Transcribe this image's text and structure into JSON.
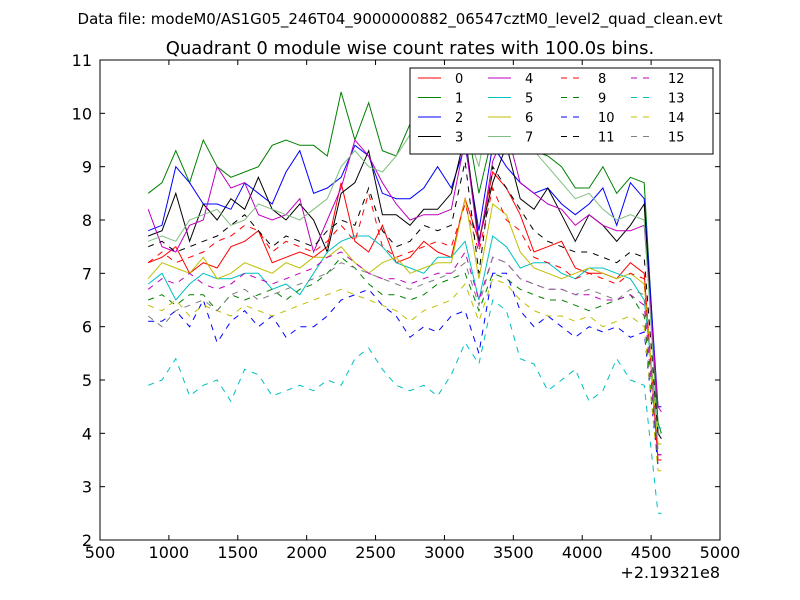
{
  "chart_data": {
    "type": "line",
    "suptitle": "Data file: modeM0/AS1G05_246T04_9000000882_06547cztM0_level2_quad_clean.evt",
    "title": "Quadrant 0 module wise count rates with 100.0s bins.",
    "xlabel": "",
    "ylabel": "",
    "x_offset_label": "+2.19321e8",
    "xlim": [
      500,
      5000
    ],
    "ylim": [
      2,
      11
    ],
    "x_ticks": [
      "500",
      "1000",
      "1500",
      "2000",
      "2500",
      "3000",
      "3500",
      "4000",
      "4500",
      "5000"
    ],
    "y_ticks": [
      "2",
      "3",
      "4",
      "5",
      "6",
      "7",
      "8",
      "9",
      "10",
      "11"
    ],
    "grid": false,
    "legend_position": "top-right",
    "x": [
      850,
      950,
      1050,
      1150,
      1250,
      1350,
      1450,
      1550,
      1650,
      1750,
      1850,
      1950,
      2050,
      2150,
      2250,
      2350,
      2450,
      2550,
      2650,
      2750,
      2850,
      2950,
      3050,
      3150,
      3250,
      3350,
      3450,
      3550,
      3650,
      3750,
      3850,
      3950,
      4050,
      4150,
      4250,
      4350,
      4450,
      4550,
      4575
    ],
    "series": [
      {
        "name": "0",
        "color": "#ff0000",
        "dash": "solid",
        "values": [
          7.2,
          7.3,
          7.5,
          7.0,
          7.2,
          7.1,
          7.5,
          7.6,
          7.8,
          7.2,
          7.3,
          7.4,
          7.3,
          7.5,
          8.7,
          7.6,
          7.4,
          7.9,
          7.2,
          7.3,
          7.6,
          7.4,
          7.3,
          8.4,
          7.6,
          8.9,
          8.6,
          8.1,
          7.4,
          7.5,
          7.6,
          7.1,
          7.0,
          7.0,
          6.9,
          7.2,
          7.0,
          3.5,
          3.5
        ]
      },
      {
        "name": "1",
        "color": "#008000",
        "dash": "solid",
        "values": [
          8.5,
          8.7,
          9.3,
          8.7,
          9.5,
          9.0,
          8.8,
          8.9,
          9.0,
          9.4,
          9.5,
          9.4,
          9.4,
          9.2,
          10.4,
          9.5,
          10.2,
          9.3,
          9.2,
          9.8,
          9.4,
          9.3,
          9.7,
          10.0,
          8.5,
          9.6,
          10.0,
          9.5,
          9.3,
          9.2,
          9.0,
          8.6,
          8.6,
          9.0,
          8.5,
          8.8,
          8.7,
          4.2,
          4.0
        ]
      },
      {
        "name": "2",
        "color": "#0000ff",
        "dash": "solid",
        "values": [
          7.8,
          7.9,
          9.0,
          8.7,
          8.3,
          8.3,
          8.2,
          8.7,
          8.5,
          8.3,
          8.9,
          9.3,
          8.5,
          8.6,
          8.8,
          9.4,
          9.2,
          8.5,
          8.4,
          8.4,
          8.6,
          9.0,
          8.6,
          9.4,
          7.8,
          9.4,
          9.0,
          8.7,
          8.5,
          8.6,
          8.3,
          8.1,
          8.3,
          8.6,
          7.9,
          8.7,
          8.4,
          4.5,
          4.5
        ]
      },
      {
        "name": "3",
        "color": "#000000",
        "dash": "solid",
        "values": [
          7.7,
          7.8,
          8.5,
          7.6,
          8.3,
          8.0,
          8.4,
          8.2,
          8.8,
          8.2,
          8.0,
          8.3,
          8.0,
          7.4,
          8.5,
          8.7,
          9.3,
          8.1,
          8.1,
          7.9,
          8.2,
          8.2,
          8.5,
          9.6,
          7.6,
          8.7,
          9.4,
          8.4,
          8.2,
          8.6,
          8.1,
          7.6,
          8.1,
          7.9,
          7.6,
          7.9,
          8.3,
          4.0,
          3.9
        ]
      },
      {
        "name": "4",
        "color": "#bf00bf",
        "dash": "solid",
        "values": [
          8.2,
          7.5,
          7.4,
          7.9,
          8.0,
          9.0,
          8.6,
          8.7,
          8.1,
          8.0,
          8.1,
          8.4,
          7.4,
          8.0,
          8.6,
          9.5,
          9.2,
          8.7,
          8.3,
          8.0,
          8.1,
          8.1,
          8.2,
          9.5,
          7.5,
          9.1,
          9.7,
          8.7,
          8.5,
          8.3,
          8.2,
          7.9,
          8.1,
          7.9,
          7.8,
          7.8,
          7.9,
          4.5,
          4.4
        ]
      },
      {
        "name": "5",
        "color": "#00bfbf",
        "dash": "solid",
        "values": [
          6.8,
          7.0,
          6.5,
          6.8,
          7.0,
          6.9,
          6.9,
          7.0,
          7.0,
          6.7,
          6.8,
          6.6,
          7.0,
          7.4,
          7.6,
          7.7,
          7.7,
          7.5,
          7.2,
          7.1,
          7.0,
          7.3,
          7.3,
          7.6,
          6.5,
          7.7,
          7.5,
          7.1,
          7.2,
          7.2,
          7.0,
          6.9,
          7.1,
          7.1,
          7.0,
          6.9,
          6.5,
          4.1,
          4.1
        ]
      },
      {
        "name": "6",
        "color": "#bfbf00",
        "dash": "solid",
        "values": [
          6.9,
          7.2,
          7.1,
          7.0,
          7.3,
          6.9,
          7.0,
          7.2,
          7.1,
          7.0,
          7.2,
          7.1,
          7.3,
          7.3,
          7.5,
          7.2,
          7.0,
          7.2,
          7.3,
          7.0,
          7.1,
          7.2,
          7.2,
          8.4,
          6.9,
          8.3,
          8.1,
          7.4,
          7.1,
          7.0,
          6.9,
          7.0,
          7.1,
          7.0,
          6.9,
          7.0,
          6.8,
          3.8,
          3.8
        ]
      },
      {
        "name": "7",
        "color": "#7fbf7f",
        "dash": "solid",
        "values": [
          7.6,
          7.7,
          7.6,
          8.0,
          8.1,
          8.2,
          7.9,
          8.0,
          8.3,
          8.2,
          8.1,
          8.0,
          8.2,
          8.4,
          9.0,
          9.3,
          9.0,
          8.9,
          9.2,
          9.6,
          9.4,
          9.3,
          9.6,
          9.8,
          9.0,
          10.5,
          10.6,
          9.5,
          9.3,
          9.0,
          8.7,
          8.4,
          8.5,
          8.2,
          8.0,
          8.1,
          8.0,
          4.0,
          4.0
        ]
      },
      {
        "name": "8",
        "color": "#ff0000",
        "dash": "dashed",
        "values": [
          7.2,
          7.4,
          7.2,
          7.3,
          7.4,
          7.6,
          7.7,
          7.9,
          7.8,
          7.4,
          7.6,
          7.5,
          7.4,
          7.6,
          7.9,
          7.6,
          8.5,
          7.5,
          7.3,
          7.4,
          7.5,
          7.6,
          7.5,
          8.3,
          7.4,
          8.6,
          8.0,
          7.8,
          7.3,
          7.2,
          7.1,
          6.9,
          7.0,
          6.9,
          6.8,
          7.0,
          6.9,
          3.6,
          3.6
        ]
      },
      {
        "name": "9",
        "color": "#008000",
        "dash": "dashed",
        "values": [
          6.5,
          6.6,
          6.4,
          6.6,
          6.6,
          6.3,
          6.6,
          6.5,
          6.6,
          6.7,
          6.5,
          6.7,
          6.8,
          7.0,
          7.3,
          7.1,
          6.8,
          6.6,
          6.6,
          6.5,
          6.6,
          6.8,
          6.9,
          7.0,
          6.3,
          7.0,
          6.9,
          6.7,
          6.6,
          6.5,
          6.5,
          6.4,
          6.3,
          6.4,
          6.5,
          6.6,
          6.2,
          3.4,
          3.4
        ]
      },
      {
        "name": "10",
        "color": "#0000ff",
        "dash": "dashed",
        "values": [
          6.1,
          6.1,
          6.3,
          6.0,
          6.5,
          5.7,
          6.1,
          6.3,
          6.0,
          6.2,
          5.8,
          6.0,
          6.0,
          6.2,
          6.5,
          6.6,
          6.7,
          6.4,
          6.2,
          5.8,
          6.0,
          5.9,
          6.2,
          6.3,
          5.5,
          7.0,
          7.0,
          6.3,
          6.0,
          6.2,
          6.0,
          5.8,
          6.0,
          5.9,
          6.0,
          5.8,
          5.9,
          3.4,
          3.4
        ]
      },
      {
        "name": "11",
        "color": "#000000",
        "dash": "dashed",
        "values": [
          7.5,
          7.6,
          7.4,
          7.5,
          7.6,
          7.7,
          7.9,
          8.1,
          7.8,
          7.5,
          7.7,
          7.6,
          7.5,
          7.8,
          8.0,
          7.9,
          8.6,
          7.8,
          7.5,
          7.6,
          7.9,
          7.8,
          7.9,
          9.1,
          7.0,
          9.0,
          8.6,
          8.2,
          7.8,
          7.6,
          7.5,
          7.4,
          7.4,
          7.3,
          7.2,
          7.4,
          7.3,
          4.0,
          4.0
        ]
      },
      {
        "name": "12",
        "color": "#bf00bf",
        "dash": "dashed",
        "values": [
          6.7,
          6.9,
          6.8,
          7.0,
          6.8,
          6.7,
          6.8,
          7.0,
          6.9,
          6.8,
          6.9,
          7.0,
          7.1,
          7.3,
          7.4,
          7.2,
          7.0,
          6.9,
          6.9,
          6.8,
          6.9,
          7.0,
          7.0,
          7.4,
          6.5,
          7.3,
          7.2,
          6.9,
          6.8,
          6.7,
          6.7,
          6.6,
          6.6,
          6.5,
          6.5,
          6.6,
          6.4,
          3.6,
          3.6
        ]
      },
      {
        "name": "13",
        "color": "#00bfbf",
        "dash": "dashed",
        "values": [
          4.9,
          5.0,
          5.4,
          4.7,
          4.9,
          5.0,
          4.6,
          5.2,
          5.1,
          4.7,
          4.8,
          4.9,
          4.8,
          5.0,
          4.9,
          5.4,
          5.6,
          5.2,
          4.9,
          4.8,
          4.9,
          4.7,
          5.1,
          5.7,
          5.3,
          6.5,
          6.3,
          5.4,
          5.3,
          4.8,
          5.0,
          5.2,
          4.6,
          4.8,
          5.4,
          5.0,
          4.9,
          2.5,
          2.5
        ]
      },
      {
        "name": "14",
        "color": "#bfbf00",
        "dash": "dashed",
        "values": [
          6.4,
          6.3,
          6.5,
          6.2,
          6.4,
          6.3,
          6.2,
          6.4,
          6.3,
          6.2,
          6.3,
          6.4,
          6.5,
          6.6,
          6.7,
          6.6,
          6.5,
          6.4,
          6.3,
          6.1,
          6.3,
          6.4,
          6.5,
          6.8,
          6.1,
          6.9,
          6.8,
          6.5,
          6.3,
          6.2,
          6.2,
          6.1,
          6.2,
          6.0,
          6.1,
          6.2,
          6.0,
          3.3,
          3.3
        ]
      },
      {
        "name": "15",
        "color": "#7f7f7f",
        "dash": "dashed",
        "values": [
          6.2,
          6.0,
          6.3,
          6.4,
          6.5,
          6.3,
          6.6,
          6.7,
          6.5,
          6.6,
          6.7,
          6.8,
          6.9,
          7.0,
          7.2,
          7.1,
          7.0,
          6.9,
          6.8,
          6.7,
          6.8,
          6.9,
          7.0,
          7.2,
          6.4,
          7.3,
          7.2,
          6.9,
          6.8,
          6.7,
          6.7,
          6.6,
          6.7,
          6.6,
          6.5,
          6.7,
          6.6,
          3.7,
          3.7
        ]
      }
    ]
  }
}
